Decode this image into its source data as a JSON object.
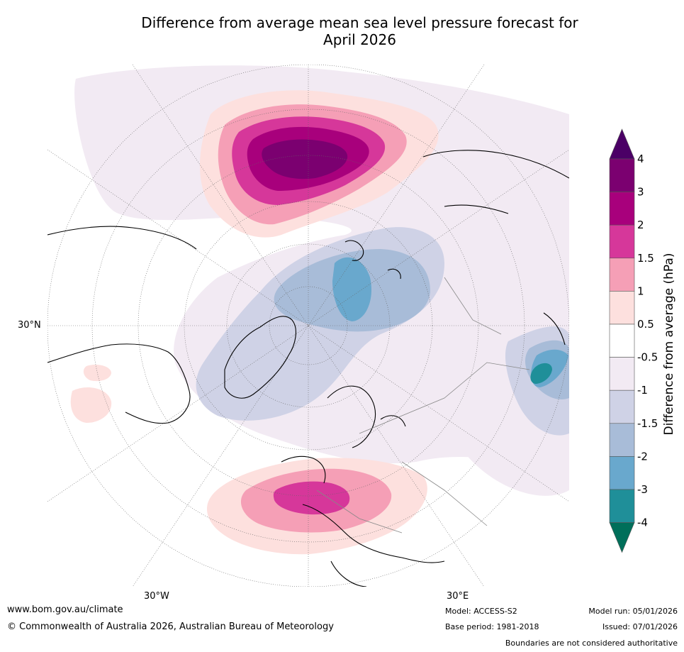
{
  "title_line1": "Difference from average mean sea level pressure forecast for",
  "title_line2": "April 2026",
  "lat_labels": [
    "30°N"
  ],
  "lon_labels": [
    "30°W",
    "30°E"
  ],
  "colorbar": {
    "title": "Difference from average (hPa)",
    "ticks": [
      "4",
      "3",
      "2",
      "1.5",
      "1",
      "0.5",
      "-0.5",
      "-1",
      "-1.5",
      "-2",
      "-3",
      "-4"
    ],
    "colors": [
      "#7b0070",
      "#a8007c",
      "#d6379a",
      "#f59fb6",
      "#fde0de",
      "#ffffff",
      "#f2eaf3",
      "#cfd2e6",
      "#a8bcd8",
      "#69a8cd",
      "#1f8f99"
    ],
    "over_color": "#4b0066",
    "under_color": "#006f5a"
  },
  "footer": {
    "url": "www.bom.gov.au/climate",
    "copyright": "© Commonwealth of Australia 2026, Australian Bureau of Meteorology",
    "model": "Model: ACCESS-S2",
    "base_period": "Base period: 1981-2018",
    "model_run": "Model run: 05/01/2026",
    "issued": "Issued: 07/01/2026",
    "disclaimer": "Boundaries are not considered authoritative"
  }
}
